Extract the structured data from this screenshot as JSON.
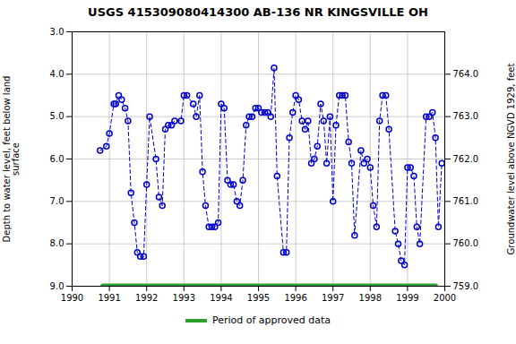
{
  "chart_data": {
    "type": "line",
    "title": "USGS 415309080414300 AB-136 NR KINGSVILLE OH",
    "ylabel": "Depth to water level, feet below land\nsurface",
    "y2label": "Groundwater level above NGVD 1929, feet",
    "x": [
      1990.75,
      1990.92,
      1991.0,
      1991.12,
      1991.17,
      1991.25,
      1991.33,
      1991.42,
      1991.5,
      1991.58,
      1991.67,
      1991.75,
      1991.83,
      1991.92,
      1992.0,
      1992.08,
      1992.25,
      1992.33,
      1992.42,
      1992.5,
      1992.58,
      1992.67,
      1992.75,
      1992.92,
      1993.0,
      1993.08,
      1993.25,
      1993.33,
      1993.42,
      1993.5,
      1993.58,
      1993.67,
      1993.75,
      1993.83,
      1993.92,
      1994.0,
      1994.08,
      1994.17,
      1994.25,
      1994.33,
      1994.42,
      1994.5,
      1994.58,
      1994.67,
      1994.75,
      1994.83,
      1994.92,
      1995.0,
      1995.08,
      1995.17,
      1995.25,
      1995.33,
      1995.42,
      1995.5,
      1995.67,
      1995.75,
      1995.83,
      1995.92,
      1996.0,
      1996.08,
      1996.17,
      1996.25,
      1996.33,
      1996.42,
      1996.5,
      1996.58,
      1996.67,
      1996.75,
      1996.83,
      1996.92,
      1997.0,
      1997.08,
      1997.17,
      1997.25,
      1997.33,
      1997.42,
      1997.5,
      1997.58,
      1997.75,
      1997.83,
      1997.92,
      1998.0,
      1998.08,
      1998.17,
      1998.25,
      1998.33,
      1998.42,
      1998.5,
      1998.67,
      1998.75,
      1998.83,
      1998.92,
      1999.0,
      1999.08,
      1999.17,
      1999.25,
      1999.33,
      1999.5,
      1999.58,
      1999.67,
      1999.75,
      1999.83,
      1999.92
    ],
    "series": [
      {
        "color": "#0000cc",
        "line_style": "dashed",
        "marker": "circle",
        "values": [
          5.8,
          5.7,
          5.4,
          4.7,
          4.7,
          4.5,
          4.6,
          4.8,
          5.1,
          6.8,
          7.5,
          8.2,
          8.3,
          8.3,
          6.6,
          5.0,
          6.0,
          6.9,
          7.1,
          5.3,
          5.2,
          5.2,
          5.1,
          5.1,
          4.5,
          4.5,
          4.7,
          5.0,
          4.5,
          6.3,
          7.1,
          7.6,
          7.6,
          7.6,
          7.5,
          4.7,
          4.8,
          6.5,
          6.6,
          6.6,
          7.0,
          7.1,
          6.5,
          5.2,
          5.0,
          5.0,
          4.8,
          4.8,
          4.9,
          4.9,
          4.9,
          5.0,
          3.85,
          6.4,
          8.2,
          8.2,
          5.5,
          4.9,
          4.5,
          4.6,
          5.1,
          5.3,
          5.1,
          6.1,
          6.0,
          5.7,
          4.7,
          5.1,
          6.1,
          5.0,
          7.0,
          5.2,
          4.5,
          4.5,
          4.5,
          5.6,
          6.1,
          7.8,
          5.8,
          6.1,
          6.0,
          6.2,
          7.1,
          7.6,
          5.1,
          4.5,
          4.5,
          5.3,
          7.7,
          8.0,
          8.4,
          8.5,
          6.2,
          6.2,
          6.4,
          7.6,
          8.0,
          5.0,
          5.0,
          4.9,
          5.5,
          7.6,
          6.1
        ]
      },
      {
        "name": "Period of approved data",
        "color": "#2ca02c",
        "line_style": "solid",
        "x": [
          1990.83,
          1999.75
        ],
        "values": [
          9.0,
          9.0
        ]
      }
    ],
    "xlim": [
      1990,
      2000
    ],
    "xticks": [
      1990,
      1991,
      1992,
      1993,
      1994,
      1995,
      1996,
      1997,
      1998,
      1999,
      2000
    ],
    "ylim": [
      9.0,
      3.0
    ],
    "yticks": [
      {
        "value": 3.0,
        "label": "3.0"
      },
      {
        "value": 4.0,
        "label": "4.0"
      },
      {
        "value": 5.0,
        "label": "5.0"
      },
      {
        "value": 6.0,
        "label": "6.0"
      },
      {
        "value": 7.0,
        "label": "7.0"
      },
      {
        "value": 8.0,
        "label": "8.0"
      },
      {
        "value": 9.0,
        "label": "9.0"
      }
    ],
    "y2lim": [
      759.0,
      765.0
    ],
    "y2ticks": [
      {
        "value": 759.0,
        "label": "759.0"
      },
      {
        "value": 760.0,
        "label": "760.0"
      },
      {
        "value": 761.0,
        "label": "761.0"
      },
      {
        "value": 762.0,
        "label": "762.0"
      },
      {
        "value": 763.0,
        "label": "763.0"
      },
      {
        "value": 764.0,
        "label": "764.0"
      }
    ],
    "grid": true,
    "legend": "bottom"
  }
}
